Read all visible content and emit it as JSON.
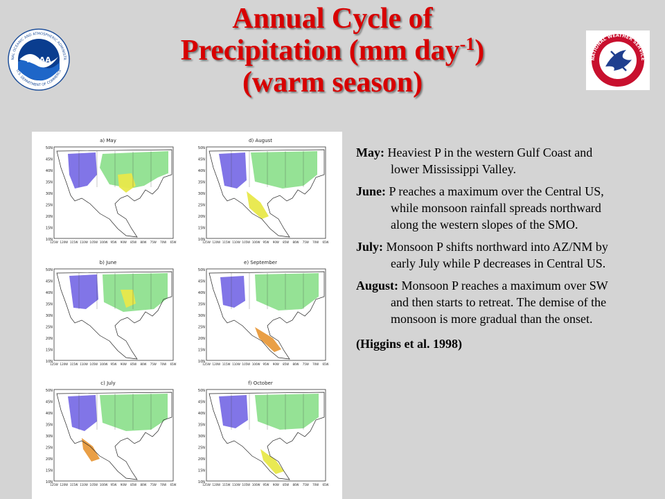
{
  "title": {
    "line1": "Annual Cycle of",
    "line2_pre": "Precipitation (mm day",
    "line2_sup": "-1",
    "line2_post": ")",
    "line3": "(warm season)"
  },
  "logos": {
    "noaa_text": "NOAA",
    "noaa_ring_top": "NATIONAL OCEANIC AND ATMOSPHERIC ADMINISTRATION",
    "noaa_ring_bottom": "U.S. DEPARTMENT OF COMMERCE",
    "nws_ring_text": "NATIONAL WEATHER SERVICE",
    "noaa_colors": {
      "ring": "#ffffff",
      "inner": "#0a3d8f",
      "sky": "#1e66c8",
      "bird": "#ffffff"
    },
    "nws_colors": {
      "ring": "#c8102e",
      "inner": "#ffffff",
      "bolt": "#1f3f8f"
    }
  },
  "maps": {
    "panels": [
      {
        "id": "a",
        "label": "a) May"
      },
      {
        "id": "d",
        "label": "d) August"
      },
      {
        "id": "b",
        "label": "b) June"
      },
      {
        "id": "e",
        "label": "e) September"
      },
      {
        "id": "c",
        "label": "c) July"
      },
      {
        "id": "f",
        "label": "f) October"
      }
    ],
    "lat_ticks": [
      "50N",
      "45N",
      "40N",
      "35N",
      "30N",
      "25N",
      "20N",
      "15N",
      "10N"
    ],
    "lon_ticks": [
      "125W",
      "120W",
      "115W",
      "110W",
      "105W",
      "100W",
      "95W",
      "90W",
      "85W",
      "80W",
      "75W",
      "70W",
      "65W"
    ],
    "shade_colors": {
      "green": "#8fe08f",
      "purple": "#7a6ee6",
      "yellow": "#e8e84a",
      "orange": "#e89a3c",
      "red": "#e05a3c"
    }
  },
  "text": {
    "paragraphs": [
      {
        "lead": "May:",
        "body": " Heaviest P in the western Gulf Coast and lower Mississippi Valley."
      },
      {
        "lead": "June:",
        "body": " P reaches a maximum over the Central US, while monsoon rainfall spreads northward along the western slopes of the SMO."
      },
      {
        "lead": "July:",
        "body": "  Monsoon P shifts northward into AZ/NM by early July while P decreases in Central US."
      },
      {
        "lead": "August:",
        "body": " Monsoon P reaches a maximum over SW and then starts to retreat.  The demise of the monsoon  is more gradual than the onset."
      }
    ],
    "citation": "(Higgins et al. 1998)"
  }
}
